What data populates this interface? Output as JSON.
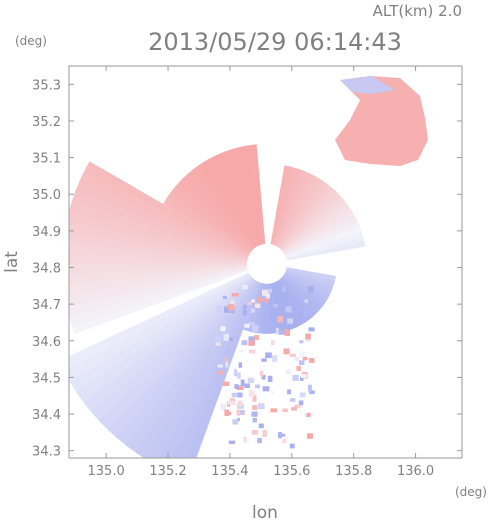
{
  "chart_data": {
    "type": "heatmap",
    "title": "2013/05/29 06:14:43",
    "subtitle": "ALT(km) 2.0",
    "xlabel": "lon",
    "ylabel": "lat",
    "x_unit": "(deg)",
    "y_unit": "(deg)",
    "xlim": [
      134.88,
      136.15
    ],
    "ylim": [
      34.28,
      35.35
    ],
    "x_ticks": [
      "135.0",
      "135.2",
      "135.4",
      "135.6",
      "135.8",
      "136.0"
    ],
    "y_ticks": [
      "34.3",
      "34.4",
      "34.5",
      "34.6",
      "34.7",
      "34.8",
      "34.9",
      "35.0",
      "35.1",
      "35.2",
      "35.3"
    ],
    "grid": false,
    "radar_center": {
      "lon": 135.52,
      "lat": 34.81
    },
    "colors": {
      "toward": "#a8b0f0",
      "neutral": "#f4f4fb",
      "away": "#f7a8a8",
      "strong_away": "#f08a8a"
    }
  }
}
